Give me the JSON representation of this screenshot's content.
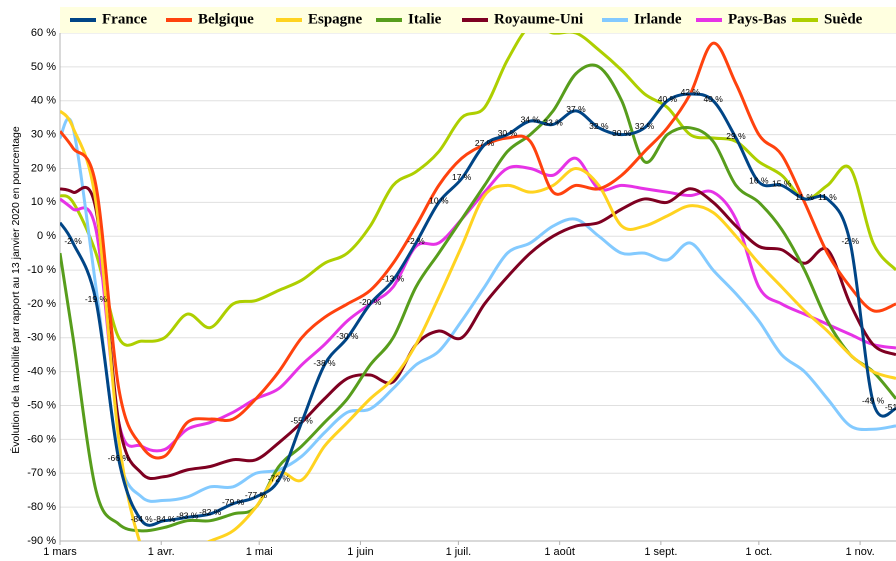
{
  "chart_data": {
    "type": "line",
    "y_label": "Évolution de la mobilité par rapport au 13 janvier 2020 en pourcentage",
    "x": [
      0,
      4,
      11,
      18,
      25,
      32,
      39,
      46,
      53,
      60,
      67,
      74,
      81,
      88,
      95,
      102,
      109,
      116,
      123,
      130,
      137,
      144,
      151,
      158,
      165,
      172,
      179,
      186,
      193,
      200,
      207,
      214,
      221,
      228,
      235,
      242,
      249,
      256
    ],
    "xlim": [
      0,
      256
    ],
    "xticks": [
      {
        "value": 0,
        "label": "1 mars"
      },
      {
        "value": 31,
        "label": "1 avr."
      },
      {
        "value": 61,
        "label": "1 mai"
      },
      {
        "value": 92,
        "label": "1 juin"
      },
      {
        "value": 122,
        "label": "1 juil."
      },
      {
        "value": 153,
        "label": "1 août"
      },
      {
        "value": 184,
        "label": "1 sept."
      },
      {
        "value": 214,
        "label": "1 oct."
      },
      {
        "value": 245,
        "label": "1 nov."
      }
    ],
    "ylim": [
      -90,
      60
    ],
    "yticks": [
      {
        "value": -90,
        "label": "-90 %"
      },
      {
        "value": -80,
        "label": "-80 %"
      },
      {
        "value": -70,
        "label": "-70 %"
      },
      {
        "value": -60,
        "label": "-60 %"
      },
      {
        "value": -50,
        "label": "-50 %"
      },
      {
        "value": -40,
        "label": "-40 %"
      },
      {
        "value": -30,
        "label": "-30 %"
      },
      {
        "value": -20,
        "label": "-20 %"
      },
      {
        "value": -10,
        "label": "-10 %"
      },
      {
        "value": 0,
        "label": "0 %"
      },
      {
        "value": 10,
        "label": "10 %"
      },
      {
        "value": 20,
        "label": "20 %"
      },
      {
        "value": 30,
        "label": "30 %"
      },
      {
        "value": 40,
        "label": "40 %"
      },
      {
        "value": 50,
        "label": "50 %"
      },
      {
        "value": 60,
        "label": "60 %"
      }
    ],
    "grid": true,
    "legend": "top",
    "series": [
      {
        "name": "France",
        "color": "#004586",
        "values": [
          4,
          -2,
          -19,
          -66,
          -84,
          -84,
          -83,
          -82,
          -79,
          -77,
          -72,
          -55,
          -38,
          -30,
          -20,
          -13,
          -2,
          10,
          17,
          27,
          30,
          34,
          33,
          37,
          32,
          30,
          32,
          40,
          42,
          40,
          29,
          16,
          15,
          11,
          11,
          -2,
          -49,
          -51
        ],
        "value_labels": [
          null,
          "-2 %",
          "-19 %",
          "-66 %",
          "-84 %",
          "-84 %",
          "-83 %",
          "-82 %",
          "-79 %",
          "-77 %",
          "-72 %",
          "-55 %",
          "-38 %",
          "-30 %",
          "-20 %",
          "-13 %",
          "-2 %",
          "10 %",
          "17 %",
          "27 %",
          "30 %",
          "34 %",
          "33 %",
          "37 %",
          "32 %",
          "30 %",
          "32 %",
          "40 %",
          "42 %",
          "40 %",
          "29 %",
          "16 %",
          "15 %",
          "11 %",
          "11 %",
          "-2 %",
          "-49 %",
          "-51 %"
        ]
      },
      {
        "name": "Belgique",
        "color": "#ff420e",
        "values": [
          31,
          26,
          15,
          -45,
          -62,
          -65,
          -55,
          -54,
          -54,
          -48,
          -40,
          -30,
          -24,
          -20,
          -16,
          -8,
          3,
          15,
          23,
          27,
          29,
          28,
          13,
          15,
          14,
          18,
          25,
          32,
          42,
          57,
          45,
          30,
          24,
          10,
          -5,
          -15,
          -22,
          -20
        ]
      },
      {
        "name": "Espagne",
        "color": "#ffd320",
        "values": [
          37,
          32,
          10,
          -60,
          -92,
          -100,
          -93,
          -90,
          -87,
          -80,
          -70,
          -72,
          -62,
          -55,
          -48,
          -42,
          -32,
          -18,
          -3,
          12,
          15,
          13,
          15,
          20,
          15,
          3,
          3,
          6,
          9,
          7,
          0,
          -8,
          -15,
          -22,
          -28,
          -35,
          -40,
          -42
        ]
      },
      {
        "name": "Italie",
        "color": "#579d1c",
        "values": [
          -5,
          -30,
          -75,
          -85,
          -87,
          -86,
          -84,
          -84,
          -82,
          -80,
          -68,
          -62,
          -55,
          -48,
          -38,
          -30,
          -15,
          -5,
          5,
          15,
          25,
          30,
          37,
          48,
          50,
          40,
          22,
          30,
          32,
          28,
          15,
          10,
          2,
          -10,
          -25,
          -35,
          -40,
          -48
        ]
      },
      {
        "name": "Royaume-Uni",
        "color": "#7e0021",
        "values": [
          14,
          13,
          8,
          -55,
          -70,
          -71,
          -69,
          -68,
          -66,
          -66,
          -61,
          -55,
          -48,
          -42,
          -41,
          -43,
          -32,
          -28,
          -30,
          -20,
          -12,
          -5,
          0,
          3,
          4,
          8,
          11,
          10,
          14,
          10,
          3,
          -3,
          -4,
          -8,
          -4,
          -20,
          -32,
          -35
        ]
      },
      {
        "name": "Irlande",
        "color": "#83caff",
        "values": [
          29,
          32,
          -15,
          -65,
          -77,
          -78,
          -77,
          -74,
          -74,
          -70,
          -69,
          -65,
          -58,
          -52,
          -51,
          -45,
          -38,
          -34,
          -25,
          -15,
          -5,
          -2,
          3,
          5,
          0,
          -5,
          -5,
          -7,
          -2,
          -10,
          -17,
          -25,
          -35,
          -40,
          -48,
          -56,
          -57,
          -56
        ]
      },
      {
        "name": "Pays-Bas",
        "color": "#e633e6",
        "values": [
          11,
          8,
          2,
          -55,
          -62,
          -63,
          -57,
          -55,
          -52,
          -48,
          -45,
          -38,
          -32,
          -25,
          -20,
          -15,
          -3,
          -2,
          5,
          13,
          20,
          20,
          18,
          23,
          14,
          15,
          14,
          13,
          12,
          13,
          5,
          -15,
          -20,
          -23,
          -26,
          -29,
          -32,
          -33
        ]
      },
      {
        "name": "Suède",
        "color": "#aecf00",
        "values": [
          12,
          10,
          -5,
          -30,
          -31,
          -30,
          -23,
          -27,
          -20,
          -19,
          -16,
          -13,
          -8,
          -5,
          3,
          15,
          19,
          25,
          35,
          38,
          52,
          62,
          60,
          60,
          55,
          49,
          42,
          38,
          30,
          29,
          28,
          22,
          18,
          11,
          15,
          20,
          -2,
          -10
        ]
      }
    ]
  }
}
